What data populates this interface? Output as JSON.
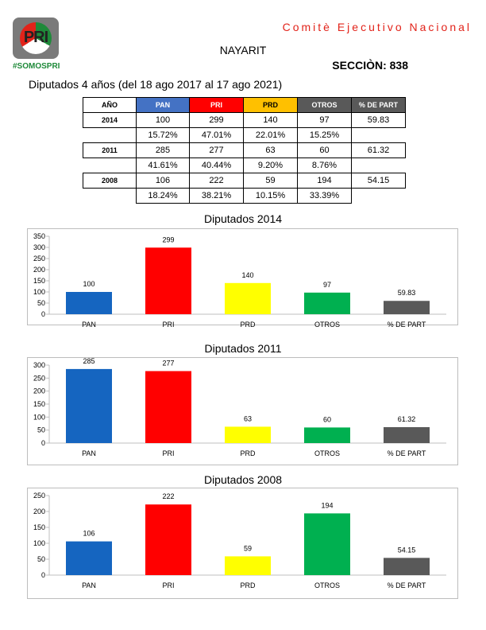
{
  "header": {
    "logo_text": "PRI",
    "hashtag": "#SOMOSPRI",
    "organization": "Comitè Ejecutivo Nacional",
    "state": "NAYARIT",
    "section": "SECCIÒN: 838",
    "subtitle": "Diputados 4 años (del 18 ago 2017 al 17 ago 2021)"
  },
  "colors": {
    "PAN": "#1565c0",
    "PRI": "#ff0000",
    "PRD": "#ffff00",
    "OTROS": "#00b050",
    "PART": "#595959"
  },
  "table": {
    "headers": [
      "AÑO",
      "PAN",
      "PRI",
      "PRD",
      "OTROS",
      "% DE PART"
    ],
    "header_colors": [
      "#ffffff",
      "#4472c4",
      "#ff0000",
      "#ffc000",
      "#595959",
      "#595959"
    ],
    "header_text_colors": [
      "#000000",
      "#ffffff",
      "#ffffff",
      "#000000",
      "#ffffff",
      "#ffffff"
    ],
    "rows": [
      {
        "year": "2014",
        "values": [
          "100",
          "299",
          "140",
          "97"
        ],
        "part": "59.83",
        "pcts": [
          "15.72%",
          "47.01%",
          "22.01%",
          "15.25%"
        ]
      },
      {
        "year": "2011",
        "values": [
          "285",
          "277",
          "63",
          "60"
        ],
        "part": "61.32",
        "pcts": [
          "41.61%",
          "40.44%",
          "9.20%",
          "8.76%"
        ]
      },
      {
        "year": "2008",
        "values": [
          "106",
          "222",
          "59",
          "194"
        ],
        "part": "54.15",
        "pcts": [
          "18.24%",
          "38.21%",
          "10.15%",
          "33.39%"
        ]
      }
    ]
  },
  "chart_data": [
    {
      "type": "bar",
      "title": "Diputados  2014",
      "categories": [
        "PAN",
        "PRI",
        "PRD",
        "OTROS",
        "% DE PART"
      ],
      "values": [
        100,
        299,
        140,
        97,
        59.83
      ],
      "labels": [
        "100",
        "299",
        "140",
        "97",
        "59.83"
      ],
      "ylim": [
        0,
        350
      ],
      "yticks": [
        "0",
        "50",
        "100",
        "150",
        "200",
        "250",
        "300",
        "350"
      ]
    },
    {
      "type": "bar",
      "title": "Diputados 2011",
      "categories": [
        "PAN",
        "PRI",
        "PRD",
        "OTROS",
        "% DE PART"
      ],
      "values": [
        285,
        277,
        63,
        60,
        61.32
      ],
      "labels": [
        "285",
        "277",
        "63",
        "60",
        "61.32"
      ],
      "ylim": [
        0,
        300
      ],
      "yticks": [
        "0",
        "50",
        "100",
        "150",
        "200",
        "250",
        "300"
      ]
    },
    {
      "type": "bar",
      "title": "Diputados 2008",
      "categories": [
        "PAN",
        "PRI",
        "PRD",
        "OTROS",
        "% DE PART"
      ],
      "values": [
        106,
        222,
        59,
        194,
        54.15
      ],
      "labels": [
        "106",
        "222",
        "59",
        "194",
        "54.15"
      ],
      "ylim": [
        0,
        250
      ],
      "yticks": [
        "0",
        "50",
        "100",
        "150",
        "200",
        "250"
      ]
    }
  ]
}
